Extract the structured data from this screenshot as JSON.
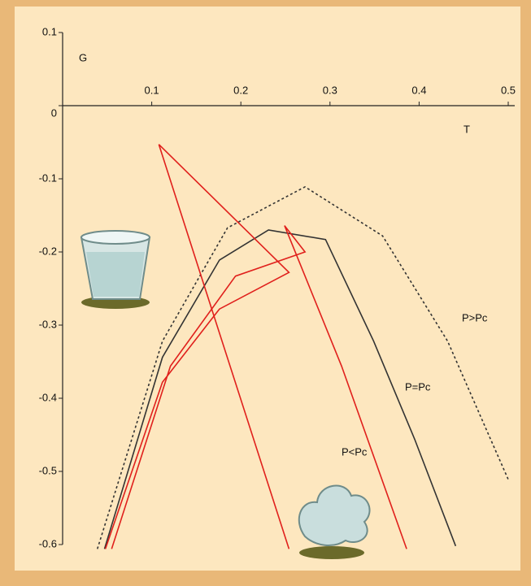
{
  "chart_data": {
    "type": "line",
    "x_label": "T",
    "y_label": "G",
    "xlim": [
      0,
      0.5
    ],
    "ylim": [
      -0.6,
      0.1
    ],
    "xticks": [
      0.1,
      0.2,
      0.3,
      0.4,
      0.5
    ],
    "yticks": [
      0.1,
      0,
      -0.1,
      -0.2,
      -0.3,
      -0.4,
      -0.5,
      -0.6
    ],
    "annotations": [
      "P>Pc",
      "P=Pc",
      "P<Pc"
    ],
    "series": [
      {
        "color": "#333333",
        "dashed": true,
        "x": [
          0.039,
          0.112,
          0.185,
          0.272,
          0.359,
          0.432,
          0.5
        ],
        "values": [
          -0.606,
          -0.322,
          -0.167,
          -0.111,
          -0.178,
          -0.322,
          -0.511
        ]
      },
      {
        "color": "#333333",
        "dashed": false,
        "x": [
          0.047,
          0.112,
          0.176,
          0.231,
          0.295,
          0.349,
          0.395,
          0.441
        ],
        "values": [
          -0.606,
          -0.344,
          -0.211,
          -0.17,
          -0.183,
          -0.322,
          -0.456,
          -0.602
        ]
      },
      {
        "color": "#e0201c",
        "dashed": false,
        "x": [
          0.048,
          0.112,
          0.176,
          0.254,
          0.108,
          0.176,
          0.254
        ],
        "values": [
          -0.606,
          -0.378,
          -0.278,
          -0.228,
          -0.053,
          -0.311,
          -0.606
        ]
      },
      {
        "color": "#e0201c",
        "dashed": false,
        "x": [
          0.055,
          0.121,
          0.194,
          0.272,
          0.249,
          0.313,
          0.386
        ],
        "values": [
          -0.606,
          -0.356,
          -0.233,
          -0.2,
          -0.164,
          -0.356,
          -0.606
        ]
      }
    ]
  }
}
